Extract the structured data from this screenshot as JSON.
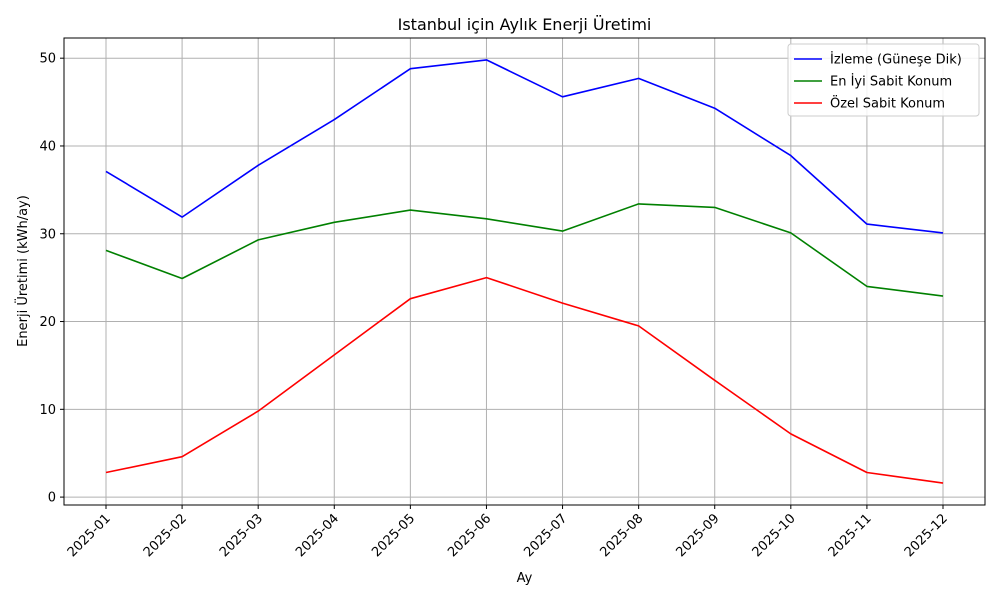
{
  "chart_data": {
    "type": "line",
    "title": "Istanbul için Aylık Enerji Üretimi",
    "xlabel": "Ay",
    "ylabel": "Enerji Üretimi (kWh/ay)",
    "categories": [
      "2025-01",
      "2025-02",
      "2025-03",
      "2025-04",
      "2025-05",
      "2025-06",
      "2025-07",
      "2025-08",
      "2025-09",
      "2025-10",
      "2025-11",
      "2025-12"
    ],
    "ylim": [
      -0.9,
      52.3
    ],
    "yticks": [
      0,
      10,
      20,
      30,
      40,
      50
    ],
    "grid": true,
    "legend_position": "top-right",
    "series": [
      {
        "name": "İzleme (Güneşe Dik)",
        "color": "#0000ff",
        "values": [
          37.1,
          31.9,
          37.8,
          43.0,
          48.8,
          49.8,
          45.6,
          47.7,
          44.3,
          38.9,
          31.1,
          30.1
        ]
      },
      {
        "name": "En İyi Sabit Konum",
        "color": "#008000",
        "values": [
          28.1,
          24.9,
          29.3,
          31.3,
          32.7,
          31.7,
          30.3,
          33.4,
          33.0,
          30.1,
          24.0,
          22.9
        ]
      },
      {
        "name": "Özel Sabit Konum",
        "color": "#ff0000",
        "values": [
          2.8,
          4.6,
          9.8,
          16.2,
          22.6,
          25.0,
          22.1,
          19.5,
          13.3,
          7.2,
          2.8,
          1.6
        ]
      }
    ]
  }
}
